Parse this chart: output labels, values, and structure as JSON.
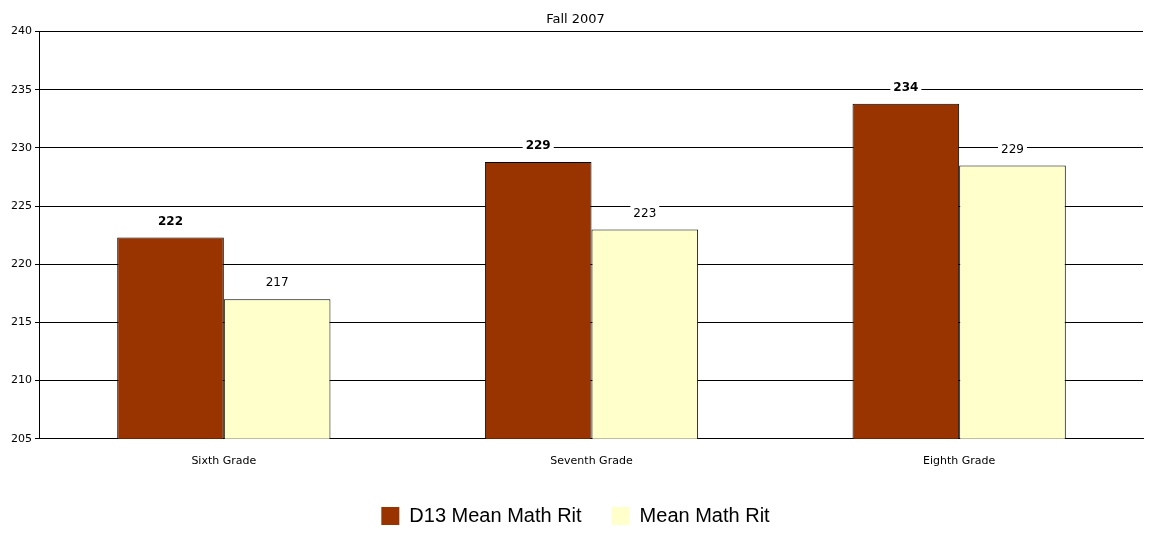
{
  "chart_data": {
    "type": "bar",
    "title": "Fall 2007",
    "categories": [
      "Sixth Grade",
      "Seventh Grade",
      "Eighth Grade"
    ],
    "series": [
      {
        "name": "D13 Mean Math Rit",
        "color": "#993300",
        "values": [
          222.3,
          228.8,
          233.8
        ],
        "value_labels": [
          "222",
          "229",
          "234"
        ]
      },
      {
        "name": "Mean Math Rit",
        "color": "#ffffcc",
        "values": [
          217,
          223,
          228.5
        ],
        "value_labels": [
          "217",
          "223",
          "229"
        ]
      }
    ],
    "ylim": [
      205,
      240
    ],
    "yticks": [
      205,
      210,
      215,
      220,
      225,
      230,
      235,
      240
    ],
    "grid": "y",
    "legend": "bottom"
  }
}
